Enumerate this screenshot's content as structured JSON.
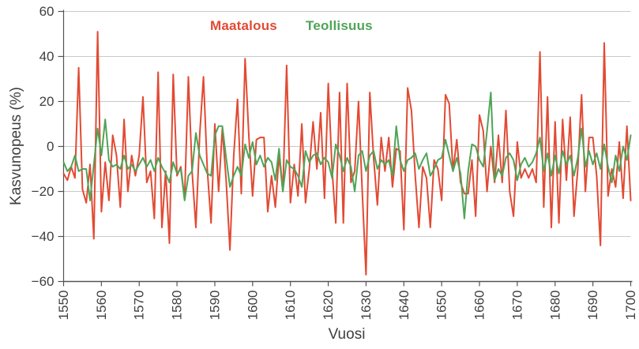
{
  "legend": {
    "items": [
      {
        "label": "Maatalous",
        "color": "#e24a33"
      },
      {
        "label": "Teollisuus",
        "color": "#4fa457"
      }
    ]
  },
  "style": {
    "grid_color": "#c9c9c9",
    "axis_color": "#545454",
    "tick_text_color": "#3f3f3f",
    "line_width": 2
  },
  "chart_data": {
    "type": "line",
    "title": "",
    "xlabel": "Vuosi",
    "ylabel": "Kasvunopeus (%)",
    "xlim": [
      1550,
      1700
    ],
    "ylim": [
      -60,
      60
    ],
    "grid": "horizontal",
    "legend_position": "top-center-inside",
    "x_tick_years": [
      1550,
      1560,
      1570,
      1580,
      1590,
      1600,
      1610,
      1620,
      1630,
      1640,
      1650,
      1660,
      1670,
      1680,
      1690,
      1700
    ],
    "y_ticks": [
      {
        "v": 60,
        "label": "60"
      },
      {
        "v": 40,
        "label": "40"
      },
      {
        "v": 20,
        "label": "20"
      },
      {
        "v": 0,
        "label": "0"
      },
      {
        "v": -20,
        "label": "−20"
      },
      {
        "v": -40,
        "label": "−40"
      },
      {
        "v": -60,
        "label": "−60"
      }
    ],
    "x_start": 1550,
    "x_step": 1,
    "series": [
      {
        "name": "Maatalous",
        "color": "#e24a33",
        "values": [
          -12,
          -15,
          -9,
          -14,
          35,
          -19,
          -25,
          -8,
          -41,
          51,
          -29,
          -7,
          -24,
          5,
          -4,
          -27,
          12,
          -20,
          -4,
          -13,
          -4,
          22,
          -16,
          -11,
          -32,
          33,
          -36,
          -11,
          -43,
          32,
          -13,
          -9,
          -23,
          31,
          -11,
          -36,
          5,
          31,
          -10,
          -34,
          10,
          -20,
          8,
          -15,
          -46,
          -4,
          21,
          -21,
          39,
          5,
          -22,
          3,
          4,
          4,
          -29,
          -13,
          -27,
          -4,
          -20,
          36,
          -25,
          -8,
          -22,
          10,
          -25,
          -10,
          11,
          -10,
          15,
          -23,
          28,
          -10,
          -34,
          24,
          -34,
          28,
          -16,
          -11,
          20,
          -20,
          -57,
          24,
          -5,
          -26,
          4,
          -11,
          4,
          -18,
          -1,
          -2,
          -37,
          26,
          16,
          -13,
          -36,
          -9,
          -14,
          -36,
          -6,
          -10,
          -24,
          23,
          19,
          -11,
          3,
          -16,
          -21,
          -21,
          -6,
          -31,
          14,
          7,
          -20,
          0,
          -16,
          5,
          -16,
          16,
          -20,
          -31,
          2,
          -14,
          -10,
          -14,
          -10,
          -16,
          42,
          -27,
          22,
          -36,
          11,
          -34,
          12,
          -15,
          13,
          -31,
          -10,
          23,
          -20,
          4,
          4,
          -13,
          -44,
          46,
          -22,
          -10,
          -18,
          2,
          -23,
          9,
          -24
        ]
      },
      {
        "name": "Teollisuus",
        "color": "#4fa457",
        "values": [
          -7,
          -11,
          -9,
          -4,
          -11,
          -10,
          -10,
          -24,
          -8,
          8,
          -4,
          12,
          -6,
          -9,
          -8,
          -10,
          -4,
          -10,
          -8,
          -11,
          -8,
          -5,
          -9,
          -6,
          -11,
          -5,
          -9,
          -12,
          -16,
          -7,
          -12,
          -10,
          -24,
          -13,
          -11,
          6,
          -4,
          -8,
          -12,
          -13,
          5,
          9,
          9,
          -5,
          -18,
          -13,
          -9,
          -13,
          1,
          -5,
          2,
          -8,
          -4,
          -9,
          -5,
          -7,
          -15,
          -1,
          -20,
          -6,
          -9,
          -10,
          -13,
          -18,
          -2,
          -7,
          -4,
          -3,
          -8,
          -5,
          -7,
          -14,
          1,
          -4,
          -11,
          -5,
          -9,
          -20,
          -4,
          -2,
          -11,
          -4,
          -2,
          -10,
          -6,
          -8,
          -6,
          -13,
          9,
          -6,
          -11,
          -6,
          -5,
          -3,
          -10,
          -6,
          -3,
          -13,
          -10,
          -6,
          -5,
          3,
          -4,
          -11,
          -5,
          -12,
          -32,
          -11,
          1,
          0,
          -6,
          -9,
          7,
          24,
          -15,
          -10,
          -13,
          -5,
          -3,
          -6,
          -15,
          -8,
          -5,
          -9,
          -7,
          -3,
          4,
          -11,
          -3,
          -13,
          -4,
          -12,
          -2,
          -8,
          -4,
          -13,
          -5,
          8,
          -9,
          -2,
          -8,
          -3,
          -10,
          1,
          -9,
          -16,
          -4,
          -11,
          0,
          -6,
          5
        ]
      }
    ]
  }
}
